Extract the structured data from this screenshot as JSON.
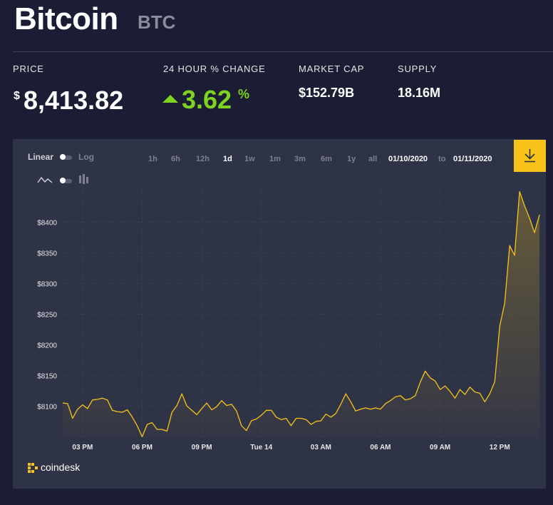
{
  "header": {
    "title": "Bitcoin",
    "ticker": "BTC"
  },
  "stats": {
    "price": {
      "label": "PRICE",
      "symbol": "$",
      "value": "8,413.82"
    },
    "change": {
      "label": "24 HOUR % CHANGE",
      "value": "3.62",
      "unit": "%"
    },
    "market_cap": {
      "label": "MARKET CAP",
      "value": "$152.79B"
    },
    "supply": {
      "label": "SUPPLY",
      "value": "18.16M"
    }
  },
  "controls": {
    "scale_linear": "Linear",
    "scale_log": "Log",
    "ranges": [
      "1h",
      "6h",
      "12h",
      "1d",
      "1w",
      "1m",
      "3m",
      "6m",
      "1y",
      "all"
    ],
    "active_range": "1d",
    "date_from": "01/10/2020",
    "date_to_label": "to",
    "date_to": "01/11/2020",
    "chart_mode": "line"
  },
  "brand": {
    "logo_text": "coindesk",
    "accent": "#f7c31a",
    "up_color": "#7ed321"
  },
  "chart_data": {
    "type": "area",
    "title": "",
    "xlabel": "",
    "ylabel": "",
    "ylim": [
      8048,
      8460
    ],
    "grid": true,
    "y_ticks": [
      8100,
      8150,
      8200,
      8250,
      8300,
      8350,
      8400
    ],
    "y_tick_labels": [
      "$8100",
      "$8150",
      "$8200",
      "$8250",
      "$8300",
      "$8350",
      "$8400"
    ],
    "x_range": [
      0,
      95
    ],
    "x_ticks": [
      4,
      16,
      28,
      40,
      52,
      64,
      76,
      88
    ],
    "x_tick_labels": [
      "03 PM",
      "06 PM",
      "09 PM",
      "Tue 14",
      "03 AM",
      "06 AM",
      "09 AM",
      "12 PM"
    ],
    "series": [
      {
        "values": [
          8105,
          8104,
          8080,
          8095,
          8102,
          8096,
          8110,
          8111,
          8113,
          8110,
          8093,
          8091,
          8090,
          8094,
          8082,
          8068,
          8050,
          8070,
          8073,
          8062,
          8062,
          8059,
          8090,
          8101,
          8120,
          8100,
          8093,
          8086,
          8096,
          8105,
          8094,
          8099,
          8109,
          8101,
          8103,
          8092,
          8068,
          8060,
          8076,
          8079,
          8085,
          8093,
          8093,
          8082,
          8078,
          8080,
          8068,
          8080,
          8080,
          8078,
          8070,
          8075,
          8076,
          8087,
          8082,
          8088,
          8103,
          8120,
          8107,
          8092,
          8095,
          8097,
          8095,
          8097,
          8095,
          8104,
          8109,
          8115,
          8117,
          8110,
          8112,
          8117,
          8139,
          8157,
          8146,
          8141,
          8127,
          8133,
          8124,
          8113,
          8127,
          8119,
          8131,
          8123,
          8121,
          8107,
          8120,
          8140,
          8230,
          8268,
          8362,
          8346,
          8450,
          8427,
          8407,
          8383,
          8412
        ]
      }
    ]
  }
}
